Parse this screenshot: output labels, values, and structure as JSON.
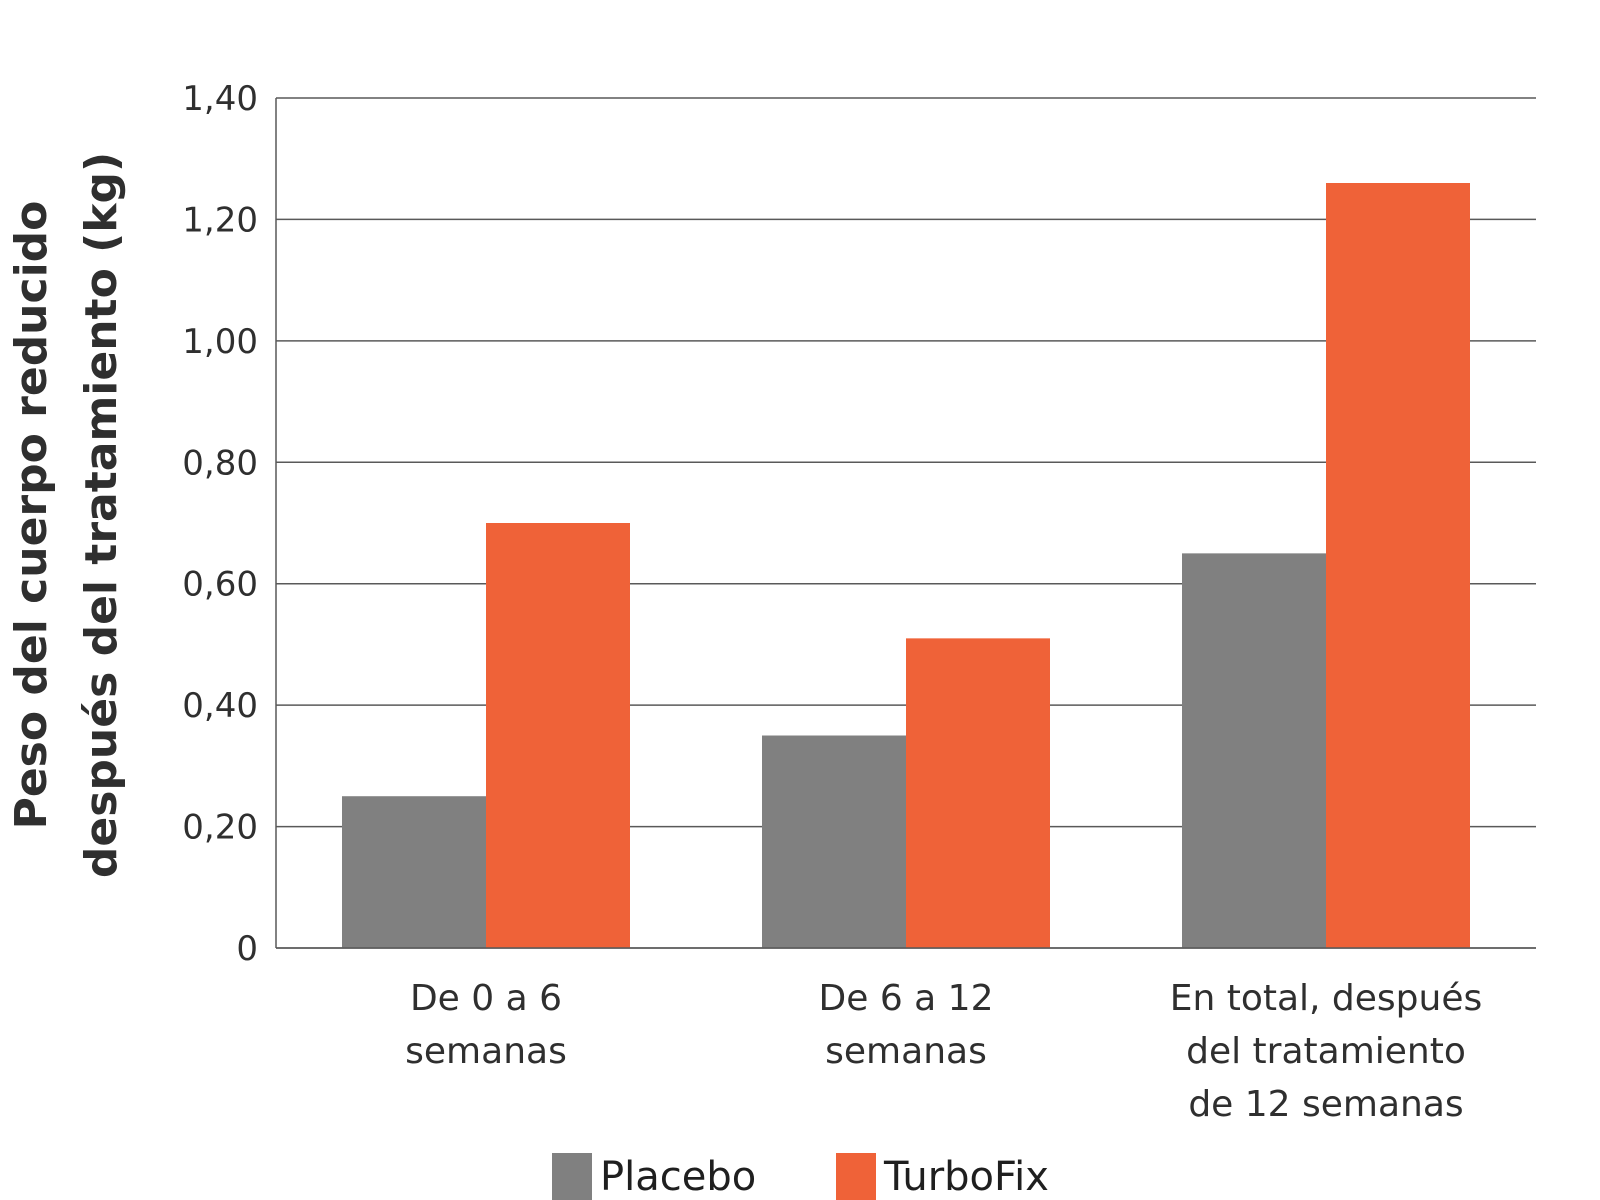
{
  "chart_data": {
    "type": "bar",
    "title": "",
    "ylabel_lines": [
      "Peso del cuerpo reducido",
      "después del tratamiento (kg)"
    ],
    "xlabel": "",
    "categories": [
      [
        "De 0 a 6",
        "semanas"
      ],
      [
        "De 6 a 12",
        "semanas"
      ],
      [
        "En total, después",
        "del tratamiento",
        "de 12 semanas"
      ]
    ],
    "series": [
      {
        "name": "Placebo",
        "color": "#808080",
        "values": [
          0.25,
          0.35,
          0.65
        ]
      },
      {
        "name": "TurboFix",
        "color": "#ef6238",
        "values": [
          0.7,
          0.51,
          1.26
        ]
      }
    ],
    "ylim": [
      0,
      1.4
    ],
    "yticks": [
      0,
      0.2,
      0.4,
      0.6,
      0.8,
      1.0,
      1.2,
      1.4
    ],
    "ytick_labels": [
      "0",
      "0,20",
      "0,40",
      "0,60",
      "0,80",
      "1,00",
      "1,20",
      "1,40"
    ],
    "grid": true,
    "gridline_color": "#595959",
    "legend_position": "bottom-center"
  }
}
